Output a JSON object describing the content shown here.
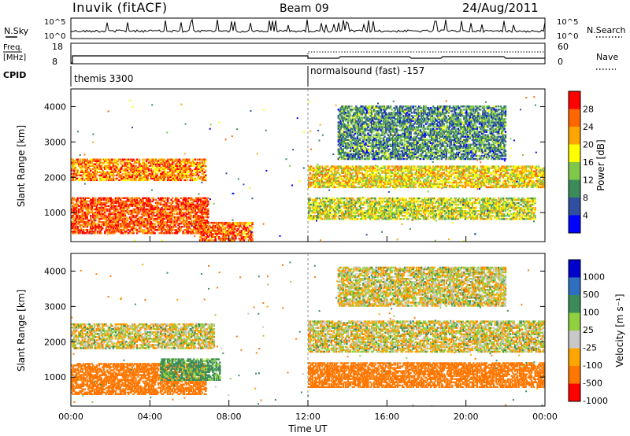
{
  "header": {
    "station": "Inuvik (fitACF)",
    "beam": "Beam 09",
    "date": "24/Aug/2011"
  },
  "strip": {
    "nsky_label": "N.Sky",
    "nsky_ticks": [
      "10^5",
      "10^0"
    ],
    "nsearch_label": "N.Search",
    "nsearch_ticks": [
      "10^5",
      "10^0"
    ],
    "freq_label_line1": "Freq.",
    "freq_label_line2": "[MHz]",
    "freq_ticks": [
      "18",
      "8"
    ],
    "nave_label": "Nave",
    "nave_ticks": [
      "60",
      "0"
    ],
    "cpid_label": "CPID",
    "cpid_mode_1": "themis 3300",
    "cpid_mode_2": "normalsound (fast) -157"
  },
  "colors": {
    "power_scale": [
      "#0000ff",
      "#2f4f9f",
      "#3c8c5a",
      "#7fc84a",
      "#ffff00",
      "#ffa500",
      "#ff6600",
      "#ff0000"
    ],
    "velocity_scale": [
      "#0000cc",
      "#2f6fbf",
      "#3c8c5a",
      "#8fd040",
      "#c8c8c8",
      "#ffa500",
      "#ff7700",
      "#ff0000"
    ]
  },
  "chart_data": [
    {
      "type": "heatmap",
      "name": "power",
      "ylabel": "Slant Range [km]",
      "yticks": [
        "1000",
        "2000",
        "3000",
        "4000"
      ],
      "ylim": [
        180,
        4500
      ],
      "xlim": [
        0,
        24
      ],
      "colorbar_label": "Power [dB]",
      "colorbar_ticks": [
        "28",
        "24",
        "20",
        "16",
        "12",
        "8",
        "4"
      ],
      "colorbar_range": [
        0,
        32
      ],
      "bands": [
        {
          "t0": 0.0,
          "t1": 6.8,
          "r0": 1900,
          "r1": 2500,
          "v": 24
        },
        {
          "t0": 0.0,
          "t1": 6.9,
          "r0": 400,
          "r1": 1400,
          "v": 27
        },
        {
          "t0": 6.5,
          "t1": 9.2,
          "r0": 200,
          "r1": 700,
          "v": 26
        },
        {
          "t0": 12.0,
          "t1": 24.0,
          "r0": 1700,
          "r1": 2300,
          "v": 19
        },
        {
          "t0": 12.0,
          "t1": 23.5,
          "r0": 800,
          "r1": 1400,
          "v": 17
        },
        {
          "t0": 13.5,
          "t1": 22.0,
          "r0": 2500,
          "r1": 4000,
          "v": 10
        }
      ]
    },
    {
      "type": "heatmap",
      "name": "velocity",
      "ylabel": "Slant Range [km]",
      "yticks": [
        "1000",
        "2000",
        "3000",
        "4000"
      ],
      "ylim": [
        180,
        4500
      ],
      "xlim": [
        0,
        24
      ],
      "xticks": [
        "00:00",
        "04:00",
        "08:00",
        "12:00",
        "16:00",
        "20:00",
        "00:00"
      ],
      "xlabel": "Time UT",
      "colorbar_label": "Velocity [m s⁻¹]",
      "colorbar_ticks": [
        "1000",
        "500",
        "100",
        "25",
        "-25",
        "-100",
        "-500",
        "-1000"
      ],
      "bands": [
        {
          "t0": 0.0,
          "t1": 7.2,
          "r0": 1800,
          "r1": 2500,
          "v": 0
        },
        {
          "t0": 0.0,
          "t1": 6.8,
          "r0": 500,
          "r1": 1400,
          "v": -300
        },
        {
          "t0": 4.5,
          "t1": 7.5,
          "r0": 900,
          "r1": 1500,
          "v": 150
        },
        {
          "t0": 12.0,
          "t1": 24.0,
          "r0": 1700,
          "r1": 2600,
          "v": 0
        },
        {
          "t0": 12.0,
          "t1": 24.0,
          "r0": 700,
          "r1": 1400,
          "v": -300
        },
        {
          "t0": 13.5,
          "t1": 22.0,
          "r0": 3000,
          "r1": 4100,
          "v": 0
        }
      ]
    }
  ]
}
